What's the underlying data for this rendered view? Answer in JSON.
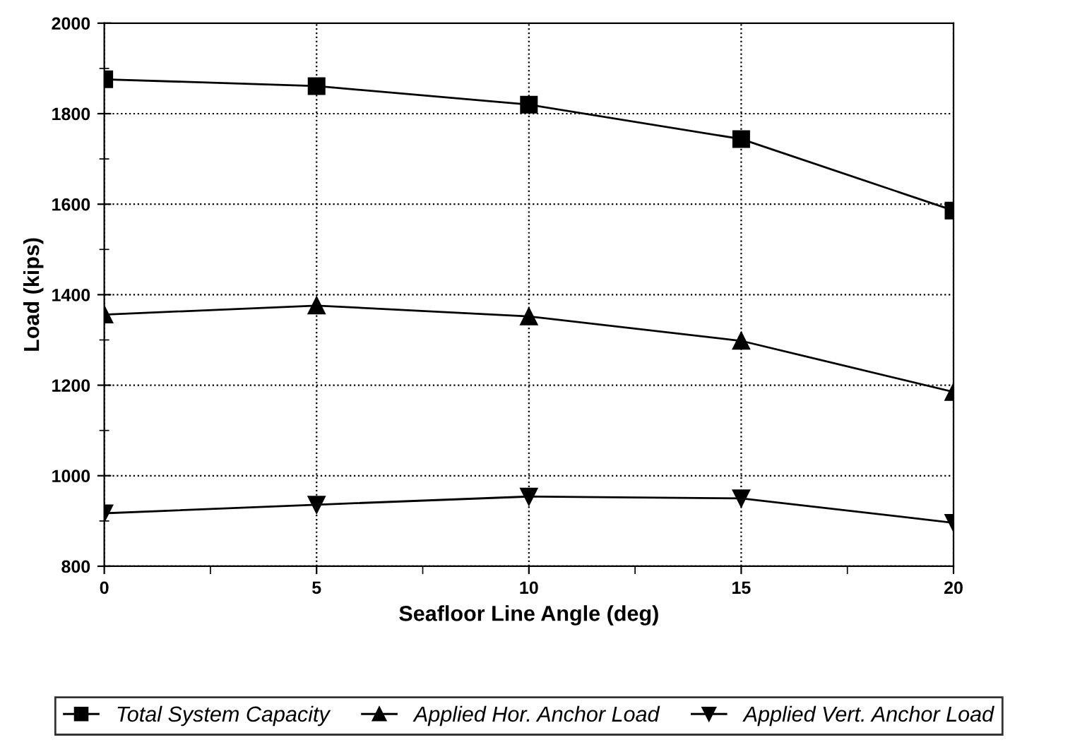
{
  "chart_data": {
    "type": "line",
    "xlabel": "Seafloor Line Angle (deg)",
    "ylabel": "Load (kips)",
    "x": [
      0,
      5,
      10,
      15,
      20
    ],
    "xlim": [
      0,
      20
    ],
    "xticks": [
      0,
      5,
      10,
      15,
      20
    ],
    "ylim": [
      800,
      2000
    ],
    "yticks": [
      800,
      1000,
      1200,
      1400,
      1600,
      1800,
      2000
    ],
    "grid": true,
    "legend": "bottom",
    "series": [
      {
        "name": "Total System Capacity",
        "color": "#000000",
        "marker": "square",
        "values": [
          1876,
          1861,
          1820,
          1744,
          1586
        ]
      },
      {
        "name": "Applied Hor. Anchor Load",
        "color": "#000000",
        "marker": "triangle",
        "values": [
          1356,
          1376,
          1352,
          1298,
          1185
        ]
      },
      {
        "name": "Applied Vert. Anchor Load",
        "color": "#000000",
        "marker": "triangle_down",
        "values": [
          917,
          936,
          954,
          950,
          896
        ]
      }
    ]
  }
}
